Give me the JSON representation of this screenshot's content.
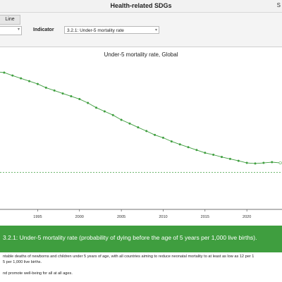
{
  "app": {
    "title": "Health-related SDGs",
    "corner": "S"
  },
  "controls": {
    "tab_line": "Line",
    "indicator_label": "Indicator",
    "indicator_value": "3.2.1: Under-5 mortality rate"
  },
  "chart_data": {
    "type": "line",
    "title": "Under-5 mortality rate, Global",
    "xlabel": "",
    "ylabel": "",
    "x_tick_labels": [
      "1995",
      "2000",
      "2005",
      "2010",
      "2015",
      "2020"
    ],
    "xlim": [
      1990.5,
      2024.2
    ],
    "ylim": [
      0,
      100
    ],
    "series": [
      {
        "color": "#3f9e3f",
        "x": [
          1990,
          1991,
          1992,
          1993,
          1994,
          1995,
          1996,
          1997,
          1998,
          1999,
          2000,
          2001,
          2002,
          2003,
          2004,
          2005,
          2006,
          2007,
          2008,
          2009,
          2010,
          2011,
          2012,
          2013,
          2014,
          2015,
          2016,
          2017,
          2018,
          2019,
          2020,
          2021,
          2022,
          2023,
          2024
        ],
        "y": [
          93,
          92.4,
          90.4,
          88.5,
          86.6,
          84.7,
          82.2,
          80.3,
          78.3,
          76.4,
          74.5,
          71.9,
          68.7,
          66.2,
          63.7,
          60.5,
          58,
          55.4,
          52.9,
          50.3,
          48.4,
          45.9,
          43.9,
          42,
          40.1,
          38.2,
          36.9,
          35.4,
          34.1,
          32.8,
          31.4,
          31,
          31.4,
          31.9,
          31.4
        ]
      }
    ],
    "target_line": {
      "y": 25,
      "style": "dashed",
      "color": "#3f9e3f"
    },
    "grid": false
  },
  "banner": {
    "text": "3.2.1: Under-5 mortality rate (probability of dying before the age of 5 years per 1,000 live births)."
  },
  "description": {
    "line1": "ntable deaths of newborns and children under 5 years of age, with all countries aiming to reduce neonatal mortality to at least as low as 12 per 1",
    "line2": "5 per 1,000 live births.",
    "line3": "nd promote well-being for all at all ages."
  }
}
